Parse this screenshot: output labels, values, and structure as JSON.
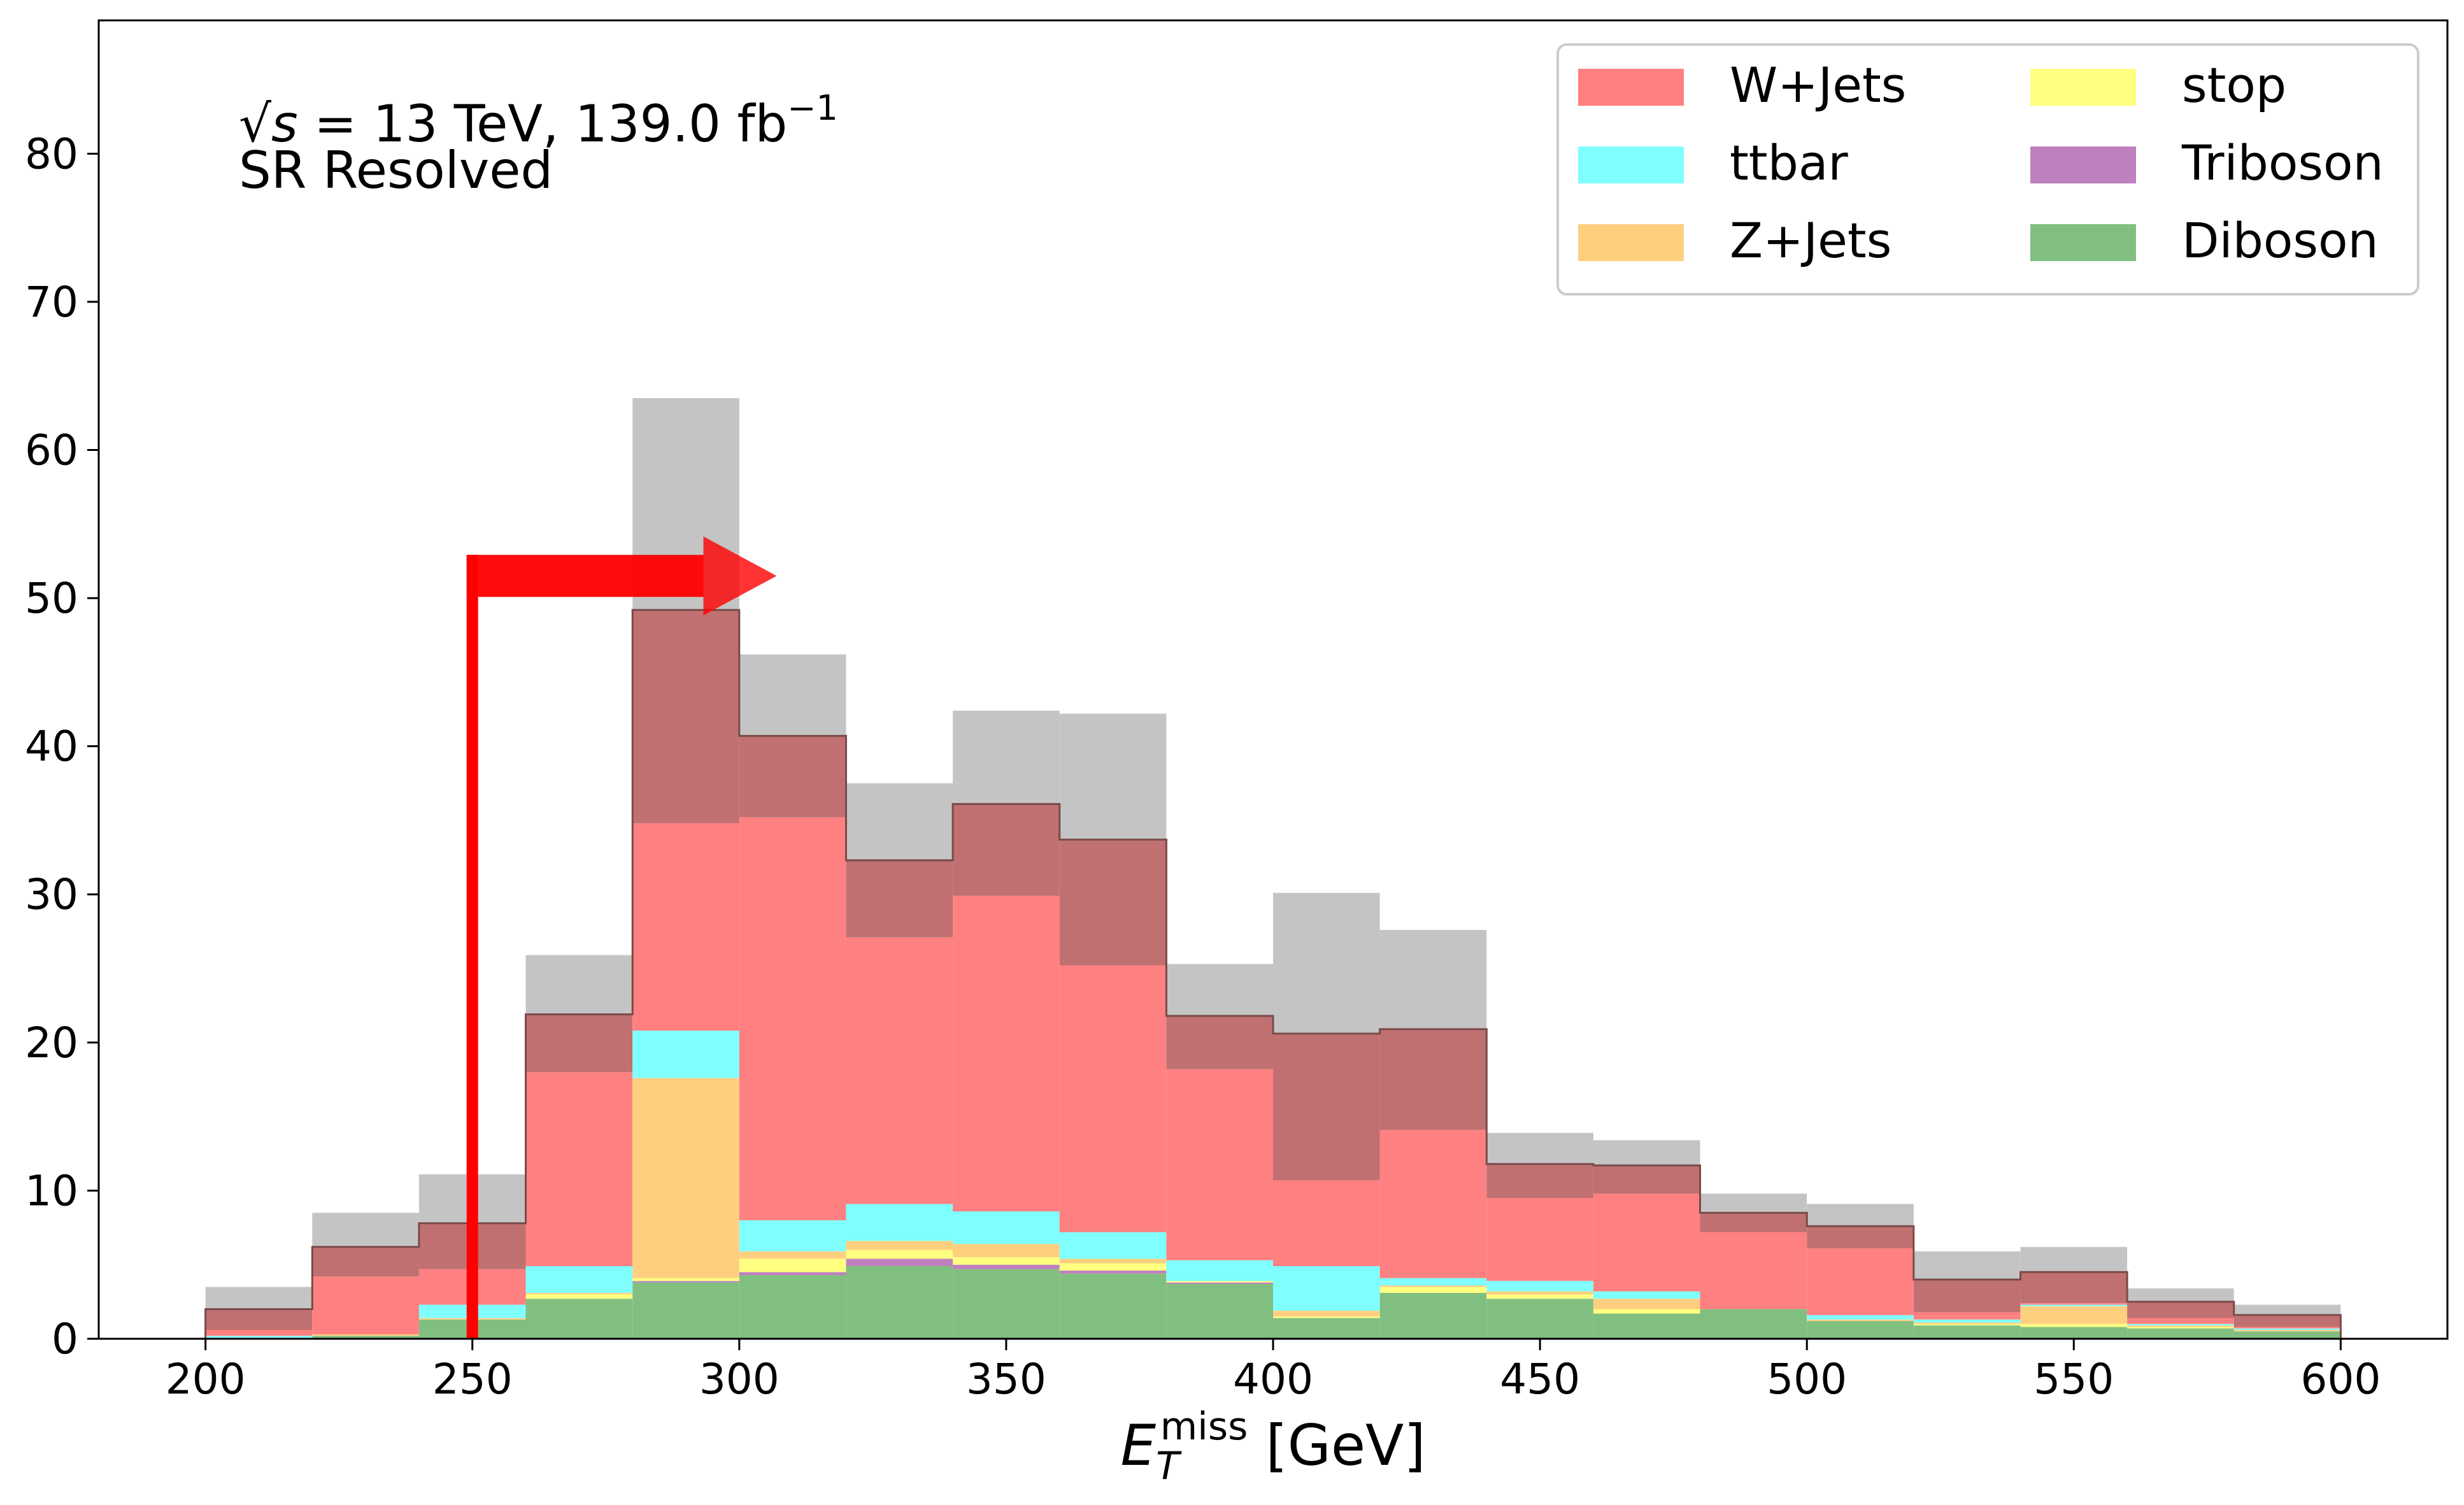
{
  "chart_data": {
    "type": "bar",
    "stacked": true,
    "bin_edges": [
      200,
      220,
      240,
      260,
      280,
      300,
      320,
      340,
      360,
      380,
      400,
      420,
      440,
      460,
      480,
      500,
      520,
      540,
      560,
      580,
      600
    ],
    "xlabel_main": "E",
    "xlabel_sub": "T",
    "xlabel_sup": "miss",
    "xlabel_unit": " [GeV]",
    "xlim": [
      180,
      620
    ],
    "ylim": [
      0,
      89
    ],
    "xticks": [
      200,
      250,
      300,
      350,
      400,
      450,
      500,
      550,
      600
    ],
    "yticks": [
      0,
      10,
      20,
      30,
      40,
      50,
      60,
      70,
      80
    ],
    "annotation": {
      "sqrt": "√",
      "s": "s",
      "energy": " = 13 TeV, 139.0 fb",
      "lumi_sup": "−1",
      "region": "SR Resolved"
    },
    "cut": {
      "value": 250,
      "arrow_y": 51.5,
      "arrow_to": 307,
      "color": "#ff0000"
    },
    "legend_position": "top-right",
    "legend": [
      {
        "name": "W+Jets",
        "color": "#ff8080"
      },
      {
        "name": "stop",
        "color": "#ffff80"
      },
      {
        "name": "ttbar",
        "color": "#80ffff"
      },
      {
        "name": "Triboson",
        "color": "#bf80bf"
      },
      {
        "name": "Z+Jets",
        "color": "#ffcf80"
      },
      {
        "name": "Diboson",
        "color": "#80bf80"
      }
    ],
    "series": [
      {
        "name": "Diboson",
        "color": "#80bf80",
        "values": [
          0.0,
          0.2,
          1.3,
          2.7,
          3.8,
          4.3,
          4.9,
          4.7,
          4.4,
          3.7,
          1.4,
          3.1,
          2.7,
          1.7,
          2.0,
          1.2,
          0.9,
          0.8,
          0.7,
          0.5
        ]
      },
      {
        "name": "Triboson",
        "color": "#bf80bf",
        "values": [
          0.0,
          0.0,
          0.0,
          0.0,
          0.1,
          0.2,
          0.5,
          0.3,
          0.2,
          0.1,
          0.0,
          0.0,
          0.0,
          0.0,
          0.0,
          0.0,
          0.0,
          0.0,
          0.0,
          0.0
        ]
      },
      {
        "name": "stop",
        "color": "#ffff80",
        "values": [
          0.0,
          0.0,
          0.0,
          0.3,
          0.2,
          0.9,
          0.6,
          0.5,
          0.5,
          0.1,
          0.1,
          0.4,
          0.3,
          0.3,
          0.0,
          0.0,
          0.1,
          0.2,
          0.1,
          0.0
        ]
      },
      {
        "name": "Z+Jets",
        "color": "#ffcf80",
        "values": [
          0.0,
          0.1,
          0.1,
          0.1,
          13.5,
          0.5,
          0.6,
          0.9,
          0.3,
          0.0,
          0.4,
          0.1,
          0.2,
          0.7,
          0.0,
          0.1,
          0.1,
          1.2,
          0.1,
          0.1
        ]
      },
      {
        "name": "ttbar",
        "color": "#80ffff",
        "values": [
          0.2,
          0.0,
          0.9,
          1.8,
          3.2,
          2.1,
          2.5,
          2.2,
          1.8,
          1.4,
          3.0,
          0.5,
          0.7,
          0.5,
          0.0,
          0.3,
          0.2,
          0.1,
          0.1,
          0.1
        ]
      },
      {
        "name": "W+Jets",
        "color": "#ff8080",
        "values": [
          0.4,
          3.9,
          2.4,
          13.1,
          14.0,
          27.2,
          18.0,
          21.3,
          18.0,
          12.9,
          5.8,
          10.0,
          5.6,
          6.6,
          5.2,
          4.5,
          0.5,
          0.1,
          0.4,
          0.1
        ]
      },
      {
        "name": "total_dark",
        "color": "#c07070",
        "values": [
          1.4,
          2.0,
          3.1,
          3.9,
          14.4,
          5.5,
          5.2,
          6.2,
          8.5,
          3.6,
          9.9,
          6.8,
          2.3,
          1.9,
          1.3,
          1.5,
          2.2,
          2.1,
          1.1,
          0.8
        ]
      },
      {
        "name": "total_grey",
        "color": "#c4c4c4",
        "values": [
          1.5,
          2.3,
          3.3,
          4.0,
          14.3,
          5.5,
          5.2,
          6.3,
          8.5,
          3.5,
          9.5,
          6.7,
          2.1,
          1.7,
          1.3,
          1.5,
          1.9,
          1.7,
          0.9,
          0.7
        ]
      }
    ]
  }
}
